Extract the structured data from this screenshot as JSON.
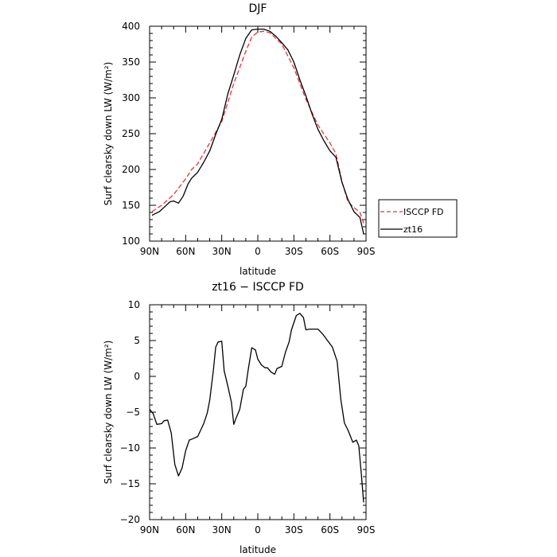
{
  "chart_data": [
    {
      "type": "line",
      "title": "DJF",
      "xlabel": "latitude",
      "ylabel": "Surf clearsky down LW (W/m²)",
      "xlim": [
        90,
        -90
      ],
      "ylim": [
        100,
        400
      ],
      "x_ticks": [
        90,
        60,
        30,
        0,
        -30,
        -60,
        -90
      ],
      "x_tick_labels": [
        "90N",
        "60N",
        "30N",
        "0",
        "30S",
        "60S",
        "90S"
      ],
      "y_ticks": [
        100,
        150,
        200,
        250,
        300,
        350,
        400
      ],
      "y_tick_labels": [
        "100",
        "150",
        "200",
        "250",
        "300",
        "350",
        "400"
      ],
      "grid": false,
      "legend_position": "right",
      "series": [
        {
          "name": "ISCCP FD",
          "color": "#e8333a",
          "dash": "dashed",
          "x": [
            88,
            80,
            70,
            60,
            55,
            50,
            40,
            30,
            20,
            10,
            5,
            0,
            -5,
            -10,
            -20,
            -30,
            -40,
            -50,
            -60,
            -65,
            -70,
            -75,
            -80,
            -85,
            -88
          ],
          "y": [
            141,
            150,
            165,
            187,
            200,
            208,
            237,
            267,
            320,
            365,
            385,
            392,
            393,
            391,
            375,
            342,
            298,
            262,
            237,
            222,
            183,
            155,
            147,
            140,
            125
          ]
        },
        {
          "name": "zt16",
          "color": "#000000",
          "dash": "solid",
          "x": [
            88,
            82,
            78,
            73,
            70,
            66,
            62,
            58,
            55,
            50,
            45,
            40,
            35,
            30,
            25,
            20,
            15,
            10,
            5,
            0,
            -5,
            -10,
            -15,
            -20,
            -25,
            -30,
            -35,
            -40,
            -45,
            -50,
            -55,
            -60,
            -65,
            -70,
            -75,
            -80,
            -85,
            -88
          ],
          "y": [
            136,
            141,
            147,
            155,
            156,
            153,
            163,
            180,
            188,
            196,
            210,
            226,
            249,
            270,
            305,
            332,
            360,
            383,
            395,
            396,
            396,
            393,
            386,
            377,
            367,
            350,
            325,
            303,
            278,
            256,
            240,
            226,
            217,
            182,
            158,
            141,
            133,
            110
          ]
        }
      ]
    },
    {
      "type": "line",
      "title": "zt16 − ISCCP FD",
      "xlabel": "latitude",
      "ylabel": "Surf clearsky down LW (W/m²)",
      "xlim": [
        90,
        -90
      ],
      "ylim": [
        -20,
        10
      ],
      "x_ticks": [
        90,
        60,
        30,
        0,
        -30,
        -60,
        -90
      ],
      "x_tick_labels": [
        "90N",
        "60N",
        "30N",
        "0",
        "30S",
        "60S",
        "90S"
      ],
      "y_ticks": [
        -20,
        -15,
        -10,
        -5,
        0,
        5,
        10
      ],
      "y_tick_labels": [
        "−20",
        "−15",
        "−10",
        "−5",
        "0",
        "5",
        "10"
      ],
      "grid": false,
      "series": [
        {
          "color": "#000000",
          "dash": "solid",
          "x": [
            90,
            87,
            84,
            80,
            78,
            75,
            72,
            69,
            66,
            63,
            60,
            57,
            54,
            50,
            45,
            42,
            40,
            37,
            35,
            33,
            30,
            28,
            25,
            22,
            20,
            18,
            15,
            12,
            10,
            8,
            5,
            2,
            0,
            -3,
            -6,
            -8,
            -11,
            -14,
            -16,
            -20,
            -23,
            -26,
            -28,
            -32,
            -35,
            -38,
            -40,
            -43,
            -46,
            -50,
            -54,
            -58,
            -62,
            -66,
            -69,
            -72,
            -75,
            -79,
            -82,
            -84,
            -86,
            -88
          ],
          "y": [
            -4.6,
            -5.2,
            -6.7,
            -6.6,
            -6.2,
            -6.1,
            -7.9,
            -12.3,
            -13.9,
            -12.8,
            -10.4,
            -8.9,
            -8.7,
            -8.4,
            -6.6,
            -5.1,
            -3.3,
            0.8,
            4.1,
            4.8,
            4.9,
            0.8,
            -1.3,
            -3.6,
            -6.7,
            -5.8,
            -4.6,
            -1.8,
            -1.4,
            0.9,
            4.0,
            3.7,
            2.4,
            1.6,
            1.2,
            1.2,
            0.6,
            0.3,
            1.1,
            1.4,
            3.4,
            4.8,
            6.5,
            8.5,
            8.8,
            8.2,
            6.5,
            6.6,
            6.6,
            6.6,
            5.9,
            5.0,
            4.1,
            2.1,
            -3.2,
            -6.5,
            -7.5,
            -9.2,
            -8.9,
            -9.7,
            -13.5,
            -17.6
          ]
        }
      ]
    }
  ]
}
